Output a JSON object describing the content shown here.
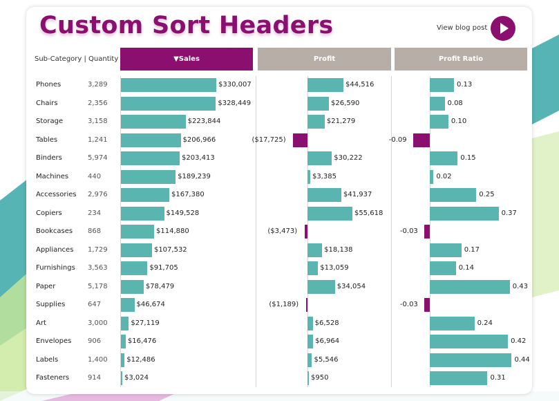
{
  "title": "Custom Sort Headers",
  "blog_link": "View blog post",
  "row_header_label": "Sub-Category  |  Quantity",
  "columns": {
    "sales": "▼Sales",
    "profit": "Profit",
    "ratio": "Profit Ratio"
  },
  "colors": {
    "accent": "#8b0f6e",
    "bar_positive": "#5ab5b1",
    "bar_negative": "#8b0f6e",
    "header_inactive": "#b8aea8"
  },
  "chart_data": {
    "type": "table",
    "sort": {
      "column": "Sales",
      "order": "descending"
    },
    "rows": [
      {
        "name": "Phones",
        "qty": "3,289",
        "sales": 330007,
        "sales_label": "$330,007",
        "profit": 44516,
        "profit_label": "$44,516",
        "ratio": 0.13,
        "ratio_label": "0.13"
      },
      {
        "name": "Chairs",
        "qty": "2,356",
        "sales": 328449,
        "sales_label": "$328,449",
        "profit": 26590,
        "profit_label": "$26,590",
        "ratio": 0.08,
        "ratio_label": "0.08"
      },
      {
        "name": "Storage",
        "qty": "3,158",
        "sales": 223844,
        "sales_label": "$223,844",
        "profit": 21279,
        "profit_label": "$21,279",
        "ratio": 0.1,
        "ratio_label": "0.10"
      },
      {
        "name": "Tables",
        "qty": "1,241",
        "sales": 206966,
        "sales_label": "$206,966",
        "profit": -17725,
        "profit_label": "($17,725)",
        "ratio": -0.09,
        "ratio_label": "-0.09"
      },
      {
        "name": "Binders",
        "qty": "5,974",
        "sales": 203413,
        "sales_label": "$203,413",
        "profit": 30222,
        "profit_label": "$30,222",
        "ratio": 0.15,
        "ratio_label": "0.15"
      },
      {
        "name": "Machines",
        "qty": "440",
        "sales": 189239,
        "sales_label": "$189,239",
        "profit": 3385,
        "profit_label": "$3,385",
        "ratio": 0.02,
        "ratio_label": "0.02"
      },
      {
        "name": "Accessories",
        "qty": "2,976",
        "sales": 167380,
        "sales_label": "$167,380",
        "profit": 41937,
        "profit_label": "$41,937",
        "ratio": 0.25,
        "ratio_label": "0.25"
      },
      {
        "name": "Copiers",
        "qty": "234",
        "sales": 149528,
        "sales_label": "$149,528",
        "profit": 55618,
        "profit_label": "$55,618",
        "ratio": 0.37,
        "ratio_label": "0.37"
      },
      {
        "name": "Bookcases",
        "qty": "868",
        "sales": 114880,
        "sales_label": "$114,880",
        "profit": -3473,
        "profit_label": "($3,473)",
        "ratio": -0.03,
        "ratio_label": "-0.03"
      },
      {
        "name": "Appliances",
        "qty": "1,729",
        "sales": 107532,
        "sales_label": "$107,532",
        "profit": 18138,
        "profit_label": "$18,138",
        "ratio": 0.17,
        "ratio_label": "0.17"
      },
      {
        "name": "Furnishings",
        "qty": "3,563",
        "sales": 91705,
        "sales_label": "$91,705",
        "profit": 13059,
        "profit_label": "$13,059",
        "ratio": 0.14,
        "ratio_label": "0.14"
      },
      {
        "name": "Paper",
        "qty": "5,178",
        "sales": 78479,
        "sales_label": "$78,479",
        "profit": 34054,
        "profit_label": "$34,054",
        "ratio": 0.43,
        "ratio_label": "0.43"
      },
      {
        "name": "Supplies",
        "qty": "647",
        "sales": 46674,
        "sales_label": "$46,674",
        "profit": -1189,
        "profit_label": "($1,189)",
        "ratio": -0.03,
        "ratio_label": "-0.03"
      },
      {
        "name": "Art",
        "qty": "3,000",
        "sales": 27119,
        "sales_label": "$27,119",
        "profit": 6528,
        "profit_label": "$6,528",
        "ratio": 0.24,
        "ratio_label": "0.24"
      },
      {
        "name": "Envelopes",
        "qty": "906",
        "sales": 16476,
        "sales_label": "$16,476",
        "profit": 6964,
        "profit_label": "$6,964",
        "ratio": 0.42,
        "ratio_label": "0.42"
      },
      {
        "name": "Labels",
        "qty": "1,400",
        "sales": 12486,
        "sales_label": "$12,486",
        "profit": 5546,
        "profit_label": "$5,546",
        "ratio": 0.44,
        "ratio_label": "0.44"
      },
      {
        "name": "Fasteners",
        "qty": "914",
        "sales": 3024,
        "sales_label": "$3,024",
        "profit": 950,
        "profit_label": "$950",
        "ratio": 0.31,
        "ratio_label": "0.31"
      }
    ]
  }
}
